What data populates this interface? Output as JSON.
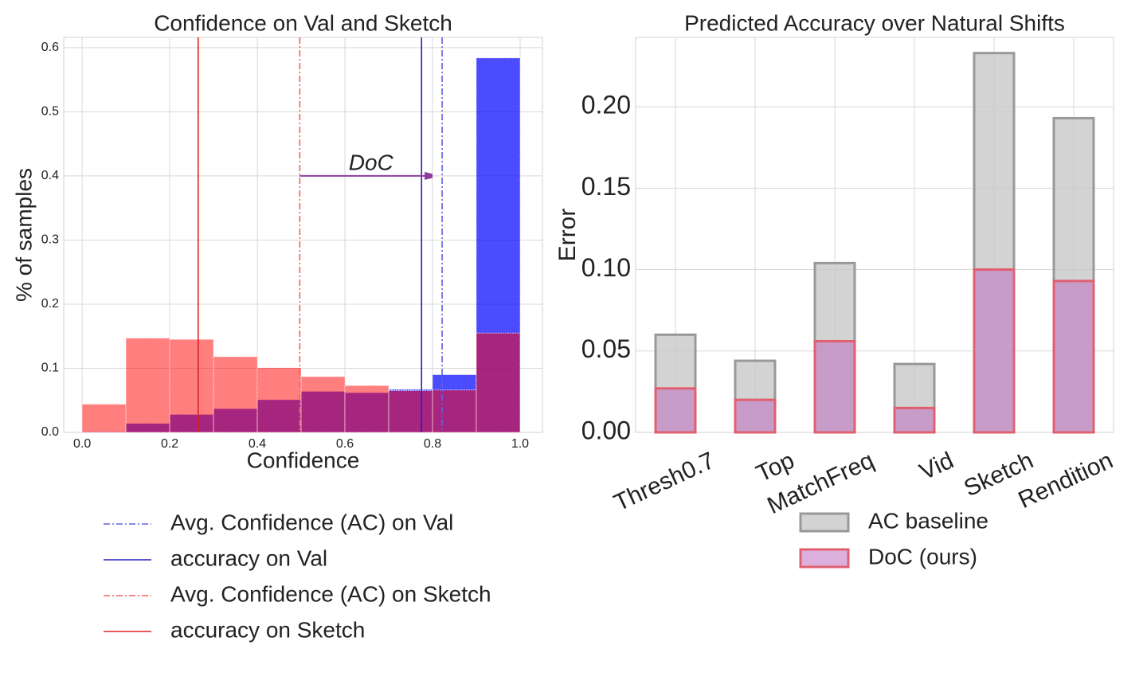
{
  "chart_data": [
    {
      "type": "histogram",
      "title": "Confidence on Val and Sketch",
      "x_label": "Confidence",
      "y_label": "% of samples",
      "bins": [
        0.0,
        0.1,
        0.2,
        0.3,
        0.4,
        0.5,
        0.6,
        0.7,
        0.8,
        0.9,
        1.0
      ],
      "series": [
        {
          "name": "Val",
          "color": "#0000ff",
          "values": [
            0.001,
            0.014,
            0.028,
            0.037,
            0.051,
            0.064,
            0.062,
            0.067,
            0.09,
            0.584
          ]
        },
        {
          "name": "Sketch",
          "color": "#ff0000",
          "values": [
            0.044,
            0.147,
            0.145,
            0.118,
            0.101,
            0.087,
            0.073,
            0.065,
            0.066,
            0.155
          ]
        }
      ],
      "lines": [
        {
          "name": "Avg. Confidence (AC) on Val",
          "color": "#6060e0",
          "style": "dashdot",
          "value": 0.822
        },
        {
          "name": "accuracy on Val",
          "color": "#2020c0",
          "style": "solid",
          "value": 0.775
        },
        {
          "name": "Avg. Confidence (AC)  on Sketch",
          "color": "#f06060",
          "style": "dashdot",
          "value": 0.497
        },
        {
          "name": "accuracy on Sketch",
          "color": "#e02020",
          "style": "solid",
          "value": 0.265
        }
      ],
      "annotation": {
        "text": "DoC",
        "x": [
          0.497,
          0.822
        ],
        "y": 0.4
      },
      "xlim": [
        -0.042,
        1.051
      ],
      "ylim": [
        0,
        0.616
      ],
      "xticks": [
        {
          "value": 0,
          "label": "0.0"
        },
        0.2,
        0.4,
        0.6,
        0.8,
        {
          "value": 1,
          "label": "1.0"
        }
      ],
      "yticks": [
        {
          "value": 0,
          "label": "0.0"
        },
        0.1,
        0.2,
        0.3,
        0.4,
        0.5,
        0.6
      ],
      "grid": true
    },
    {
      "type": "bar",
      "title": "Predicted Accuracy over Natural Shifts",
      "y_label": "Error",
      "categories": [
        "Thresh0.7",
        "Top",
        "MatchFreq",
        "Vid",
        "Sketch",
        "Rendition"
      ],
      "series": [
        {
          "name": "AC baseline",
          "color": "#c8c8c8",
          "edge": "#999999",
          "values": [
            0.06,
            0.044,
            0.104,
            0.042,
            0.233,
            0.193
          ]
        },
        {
          "name": "DoC (ours)",
          "color": "#c070c0",
          "edge": "#e06070",
          "values": [
            0.027,
            0.02,
            0.056,
            0.015,
            0.1,
            0.093
          ]
        }
      ],
      "ylim": [
        0,
        0.2426
      ],
      "yticks": [
        {
          "value": 0,
          "label": "0.00"
        },
        {
          "value": 0.05,
          "label": "0.05"
        },
        {
          "value": 0.1,
          "label": "0.10"
        },
        {
          "value": 0.15,
          "label": "0.15"
        },
        {
          "value": 0.2,
          "label": "0.20"
        }
      ],
      "grid": true
    }
  ]
}
